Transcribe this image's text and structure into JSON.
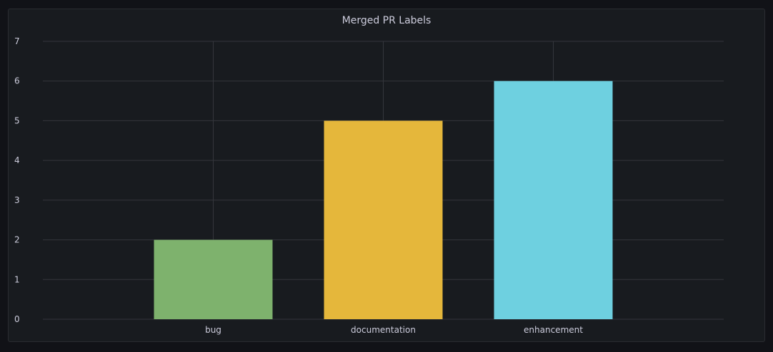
{
  "panel": {
    "title": "Merged PR Labels"
  },
  "chart_data": {
    "type": "bar",
    "title": "Merged PR Labels",
    "categories": [
      "bug",
      "documentation",
      "enhancement"
    ],
    "values": [
      2,
      5,
      6
    ],
    "colors": [
      "#7eb26d",
      "#e5b73b",
      "#6ed0e0"
    ],
    "ylim": [
      0,
      7
    ],
    "yticks": [
      0,
      1,
      2,
      3,
      4,
      5,
      6,
      7
    ],
    "xlabel": "",
    "ylabel": "",
    "grid": true,
    "legend": "none"
  },
  "theme": {
    "background": "#111217",
    "panel": "#181b1f",
    "grid": "#34363c",
    "text": "#ccccdc"
  }
}
